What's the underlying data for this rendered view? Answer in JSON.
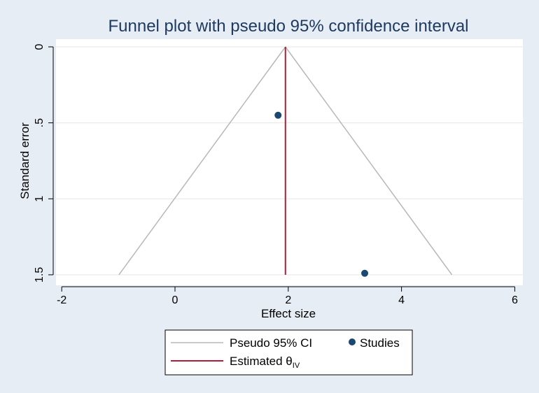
{
  "chart_data": {
    "type": "scatter",
    "title": "Funnel plot with pseudo 95% confidence interval",
    "xlabel": "Effect size",
    "ylabel": "Standard error",
    "xlim": [
      -2.2,
      6.2
    ],
    "ylim": [
      1.5,
      0
    ],
    "y_axis_reversed": true,
    "xticks": [
      -2,
      0,
      2,
      4,
      6
    ],
    "xtick_labels": [
      "-2",
      "0",
      "2",
      "4",
      "6"
    ],
    "yticks": [
      0,
      0.5,
      1,
      1.5
    ],
    "ytick_labels": [
      "0",
      ".5",
      "1",
      "1.5"
    ],
    "grid": true,
    "legend_position": "bottom",
    "estimate": 1.95,
    "pseudo_ci_lines": [
      {
        "x": [
          1.95,
          -0.99
        ],
        "y": [
          0,
          1.5
        ]
      },
      {
        "x": [
          1.95,
          4.89
        ],
        "y": [
          0,
          1.5
        ]
      }
    ],
    "series": [
      {
        "name": "Studies",
        "x": [
          1.82,
          3.35
        ],
        "y": [
          0.45,
          1.49
        ],
        "color": "#1a4870"
      }
    ],
    "legend": {
      "pseudo_ci": "Pseudo 95% CI",
      "studies": "Studies",
      "estimated_prefix": "Estimated θ",
      "estimated_subscript": "IV"
    },
    "colors": {
      "ci_line": "#b8b8b8",
      "estimate_line": "#b01c3c",
      "marker": "#1a4870",
      "title": "#1f3a60",
      "background": "#e6edf4",
      "plot_background": "#ffffff"
    }
  }
}
